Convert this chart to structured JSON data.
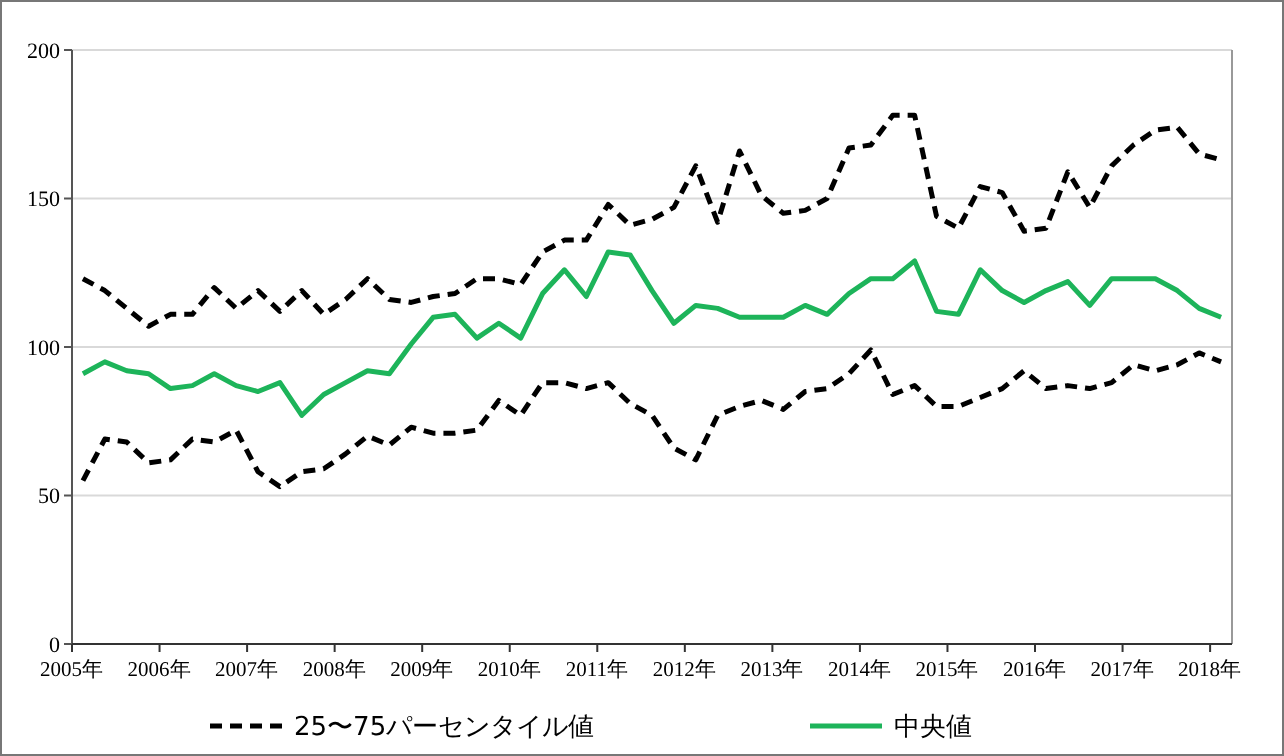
{
  "chart_data": {
    "type": "line",
    "x": [
      2005.125,
      2005.375,
      2005.625,
      2005.875,
      2006.125,
      2006.375,
      2006.625,
      2006.875,
      2007.125,
      2007.375,
      2007.625,
      2007.875,
      2008.125,
      2008.375,
      2008.625,
      2008.875,
      2009.125,
      2009.375,
      2009.625,
      2009.875,
      2010.125,
      2010.375,
      2010.625,
      2010.875,
      2011.125,
      2011.375,
      2011.625,
      2011.875,
      2012.125,
      2012.375,
      2012.625,
      2012.875,
      2013.125,
      2013.375,
      2013.625,
      2013.875,
      2014.125,
      2014.375,
      2014.625,
      2014.875,
      2015.125,
      2015.375,
      2015.625,
      2015.875,
      2016.125,
      2016.375,
      2016.625,
      2016.875,
      2017.125,
      2017.375,
      2017.625,
      2017.875,
      2018.125
    ],
    "xlim": [
      2005,
      2018.25
    ],
    "xticks": [
      {
        "value": 2005,
        "label": "2005年"
      },
      {
        "value": 2006,
        "label": "2006年"
      },
      {
        "value": 2007,
        "label": "2007年"
      },
      {
        "value": 2008,
        "label": "2008年"
      },
      {
        "value": 2009,
        "label": "2009年"
      },
      {
        "value": 2010,
        "label": "2010年"
      },
      {
        "value": 2011,
        "label": "2011年"
      },
      {
        "value": 2012,
        "label": "2012年"
      },
      {
        "value": 2013,
        "label": "2013年"
      },
      {
        "value": 2014,
        "label": "2014年"
      },
      {
        "value": 2015,
        "label": "2015年"
      },
      {
        "value": 2016,
        "label": "2016年"
      },
      {
        "value": 2017,
        "label": "2017年"
      },
      {
        "value": 2018,
        "label": "2018年"
      }
    ],
    "ylim": [
      0,
      200
    ],
    "yticks": [
      0,
      50,
      100,
      150,
      200
    ],
    "grid": "y",
    "legend": "bottom",
    "series": [
      {
        "name": "25〜75パーセンタイル値",
        "color": "#000000",
        "line_style": "dashed",
        "values": [
          123,
          119,
          113,
          107,
          111,
          111,
          120,
          113,
          119,
          112,
          119,
          111,
          116,
          123,
          116,
          115,
          117,
          118,
          123,
          123,
          121,
          132,
          136,
          136,
          148,
          141,
          143,
          147,
          161,
          142,
          166,
          151,
          145,
          146,
          150,
          167,
          168,
          178,
          178,
          144,
          140,
          154,
          152,
          139,
          140,
          159,
          147,
          161,
          168,
          173,
          174,
          165,
          163
        ]
      },
      {
        "color": "#000000",
        "line_style": "dashed",
        "values": [
          55,
          69,
          68,
          61,
          62,
          69,
          68,
          72,
          58,
          53,
          58,
          59,
          64,
          70,
          67,
          73,
          71,
          71,
          72,
          82,
          77,
          88,
          88,
          86,
          88,
          81,
          77,
          66,
          62,
          77,
          80,
          82,
          79,
          85,
          86,
          91,
          99,
          84,
          87,
          80,
          80,
          83,
          86,
          92,
          86,
          87,
          86,
          88,
          94,
          92,
          94,
          98,
          95
        ]
      },
      {
        "name": "中央値",
        "color": "#1db45a",
        "line_style": "solid",
        "values": [
          91,
          95,
          92,
          91,
          86,
          87,
          91,
          87,
          85,
          88,
          77,
          84,
          88,
          92,
          91,
          101,
          110,
          111,
          103,
          108,
          103,
          118,
          126,
          117,
          132,
          131,
          119,
          108,
          114,
          113,
          110,
          110,
          110,
          114,
          111,
          118,
          123,
          123,
          129,
          112,
          111,
          126,
          119,
          115,
          119,
          122,
          114,
          123,
          123,
          123,
          119,
          113,
          110
        ]
      }
    ]
  }
}
